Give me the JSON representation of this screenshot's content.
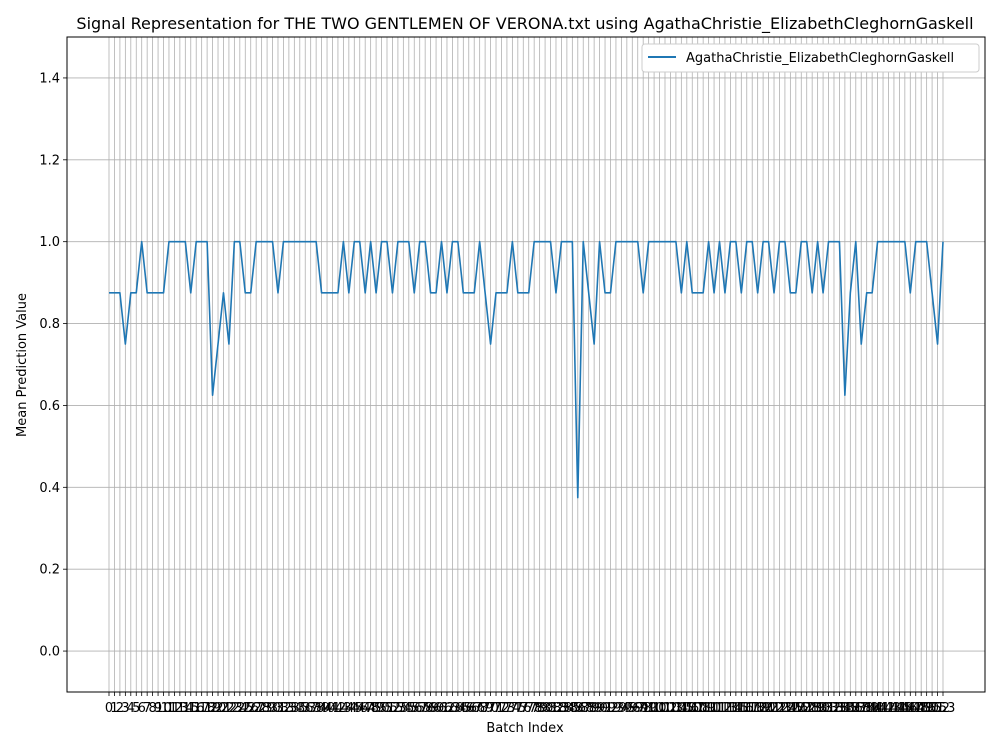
{
  "chart_data": {
    "type": "line",
    "title": "Signal Representation for THE TWO GENTLEMEN OF VERONA.txt using AgathaChristie_ElizabethCleghornGaskell",
    "xlabel": "Batch Index",
    "ylabel": "Mean Prediction Value",
    "ylim": [
      -0.1,
      1.5
    ],
    "yticks": [
      "0.0",
      "0.2",
      "0.4",
      "0.6",
      "0.8",
      "1.0",
      "1.2",
      "1.4"
    ],
    "grid": true,
    "legend_position": "top-right",
    "series": [
      {
        "name": "AgathaChristie_ElizabethCleghornGaskell",
        "color": "#1f77b4",
        "x": [
          0,
          1,
          2,
          3,
          4,
          5,
          6,
          7,
          8,
          9,
          10,
          11,
          12,
          13,
          14,
          15,
          16,
          17,
          18,
          19,
          20,
          21,
          22,
          23,
          24,
          25,
          26,
          27,
          28,
          29,
          30,
          31,
          32,
          33,
          34,
          35,
          36,
          37,
          38,
          39,
          40,
          41,
          42,
          43,
          44,
          45,
          46,
          47,
          48,
          49,
          50,
          51,
          52,
          53,
          54,
          55,
          56,
          57,
          58,
          59,
          60,
          61,
          62,
          63,
          64,
          65,
          66,
          67,
          68,
          69,
          70,
          71,
          72,
          73,
          74,
          75,
          76,
          77,
          78,
          79,
          80,
          81,
          82,
          83,
          84,
          85,
          86,
          87,
          88,
          89,
          90,
          91,
          92,
          93,
          94,
          95,
          96,
          97,
          98,
          99,
          100,
          101,
          102,
          103,
          104,
          105,
          106,
          107,
          108,
          109,
          110,
          111,
          112,
          113,
          114,
          115,
          116,
          117,
          118,
          119,
          120,
          121,
          122,
          123,
          124,
          125,
          126,
          127,
          128,
          129,
          130,
          131,
          132,
          133,
          134,
          135,
          136,
          137,
          138,
          139,
          140,
          141,
          142,
          143,
          144,
          145,
          146,
          147,
          148,
          149,
          150,
          151,
          152,
          153
        ],
        "values": [
          0.875,
          0.875,
          0.875,
          0.75,
          0.875,
          0.875,
          1.0,
          0.875,
          0.875,
          0.875,
          0.875,
          1.0,
          1.0,
          1.0,
          1.0,
          0.875,
          1.0,
          1.0,
          1.0,
          0.625,
          0.75,
          0.875,
          0.75,
          1.0,
          1.0,
          0.875,
          0.875,
          1.0,
          1.0,
          1.0,
          1.0,
          0.875,
          1.0,
          1.0,
          1.0,
          1.0,
          1.0,
          1.0,
          1.0,
          0.875,
          0.875,
          0.875,
          0.875,
          1.0,
          0.875,
          1.0,
          1.0,
          0.875,
          1.0,
          0.875,
          1.0,
          1.0,
          0.875,
          1.0,
          1.0,
          1.0,
          0.875,
          1.0,
          1.0,
          0.875,
          0.875,
          1.0,
          0.875,
          1.0,
          1.0,
          0.875,
          0.875,
          0.875,
          1.0,
          0.875,
          0.75,
          0.875,
          0.875,
          0.875,
          1.0,
          0.875,
          0.875,
          0.875,
          1.0,
          1.0,
          1.0,
          1.0,
          0.875,
          1.0,
          1.0,
          1.0,
          0.375,
          1.0,
          0.875,
          0.75,
          1.0,
          0.875,
          0.875,
          1.0,
          1.0,
          1.0,
          1.0,
          1.0,
          0.875,
          1.0,
          1.0,
          1.0,
          1.0,
          1.0,
          1.0,
          0.875,
          1.0,
          0.875,
          0.875,
          0.875,
          1.0,
          0.875,
          1.0,
          0.875,
          1.0,
          1.0,
          0.875,
          1.0,
          1.0,
          0.875,
          1.0,
          1.0,
          0.875,
          1.0,
          1.0,
          0.875,
          0.875,
          1.0,
          1.0,
          0.875,
          1.0,
          0.875,
          1.0,
          1.0,
          1.0,
          0.625,
          0.875,
          1.0,
          0.75,
          0.875,
          0.875,
          1.0,
          1.0,
          1.0,
          1.0,
          1.0,
          1.0,
          0.875,
          1.0,
          1.0,
          1.0,
          0.875,
          0.75,
          1.0
        ]
      }
    ]
  }
}
